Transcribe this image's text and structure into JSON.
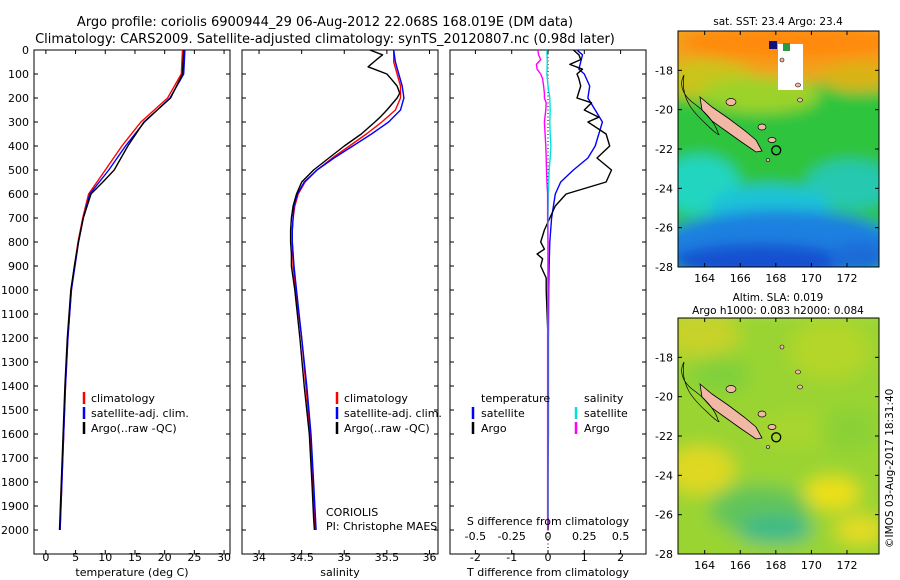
{
  "header": {
    "line1": "Argo profile: coriolis 6900944_29 06-Aug-2012 22.068S 168.019E (DM data)",
    "line2": "Climatology: CARS2009. Satellite-adjusted climatology: synTS_20120807.nc (0.98d later)"
  },
  "colors": {
    "climatology": "#ff0000",
    "satellite": "#0000ff",
    "argo": "#000000",
    "argo_salinity_diff": "#ff00ff",
    "satellite_salinity_diff": "#00e0e0"
  },
  "credits": {
    "agency": "CORIOLIS",
    "pi": "PI: Christophe MAES",
    "watermark": "©IMOS 03-Aug-2017 18:31:40"
  },
  "legend": {
    "climatology": "climatology",
    "satellite_adj": "satellite-adj. clim.",
    "argo_qc": "Argo(..raw -QC)",
    "temperature": "temperature",
    "salinity": "salinity",
    "satellite": "satellite",
    "argo": "Argo"
  },
  "chart_data": [
    {
      "type": "line",
      "id": "temperature-profile",
      "xlabel": "temperature (deg C)",
      "xlim": [
        -2,
        31
      ],
      "xticks": [
        0,
        5,
        10,
        15,
        20,
        25,
        30
      ],
      "ylim": [
        2100,
        0
      ],
      "yticks": [
        0,
        100,
        200,
        300,
        400,
        500,
        600,
        700,
        800,
        900,
        1000,
        1100,
        1200,
        1300,
        1400,
        1500,
        1600,
        1700,
        1800,
        1900,
        2000
      ],
      "series": [
        {
          "name": "climatology",
          "color": "#ff0000",
          "depth": [
            0,
            100,
            200,
            300,
            400,
            500,
            550,
            600,
            700,
            800,
            900,
            1000,
            1200,
            1400,
            1600,
            1800,
            2000
          ],
          "values": [
            23.0,
            22.8,
            20.5,
            16.0,
            12.8,
            10.0,
            8.6,
            7.2,
            6.2,
            5.4,
            4.8,
            4.3,
            3.7,
            3.3,
            3.0,
            2.7,
            2.4
          ]
        },
        {
          "name": "satellite-adj. clim.",
          "color": "#0000ff",
          "depth": [
            0,
            100,
            200,
            300,
            400,
            500,
            550,
            600,
            700,
            800,
            900,
            1000,
            1200,
            1400,
            1600,
            1800,
            2000
          ],
          "values": [
            23.4,
            23.2,
            20.9,
            16.6,
            13.4,
            10.6,
            9.0,
            7.4,
            6.3,
            5.5,
            4.9,
            4.3,
            3.7,
            3.3,
            3.0,
            2.7,
            2.4
          ]
        },
        {
          "name": "Argo(..raw -QC)",
          "color": "#000000",
          "depth": [
            0,
            100,
            200,
            300,
            400,
            500,
            550,
            600,
            700,
            800,
            900,
            1000,
            1200,
            1400,
            1600,
            1800,
            2000
          ],
          "values": [
            23.2,
            23.0,
            21.0,
            16.5,
            13.8,
            11.5,
            9.6,
            7.6,
            6.3,
            5.5,
            4.8,
            4.2,
            3.6,
            3.2,
            2.9,
            2.6,
            2.3
          ]
        }
      ]
    },
    {
      "type": "line",
      "id": "salinity-profile",
      "xlabel": "salinity",
      "xlim": [
        33.8,
        36.1
      ],
      "xticks": [
        34,
        34.5,
        35,
        35.5,
        36
      ],
      "ylim": [
        2100,
        0
      ],
      "series": [
        {
          "name": "climatology",
          "color": "#ff0000",
          "depth": [
            0,
            50,
            100,
            150,
            200,
            250,
            300,
            350,
            400,
            450,
            500,
            550,
            600,
            650,
            700,
            750,
            800,
            900,
            1000,
            1200,
            1400,
            1600,
            1800,
            2000
          ],
          "values": [
            35.58,
            35.58,
            35.62,
            35.66,
            35.66,
            35.6,
            35.44,
            35.26,
            35.06,
            34.86,
            34.68,
            34.54,
            34.46,
            34.42,
            34.4,
            34.39,
            34.39,
            34.4,
            34.43,
            34.5,
            34.55,
            34.6,
            34.63,
            34.66
          ]
        },
        {
          "name": "satellite-adj. clim.",
          "color": "#0000ff",
          "depth": [
            0,
            50,
            100,
            150,
            200,
            250,
            300,
            350,
            400,
            450,
            500,
            550,
            600,
            650,
            700,
            750,
            800,
            900,
            1000,
            1200,
            1400,
            1600,
            1800,
            2000
          ],
          "values": [
            35.58,
            35.6,
            35.64,
            35.68,
            35.7,
            35.66,
            35.52,
            35.32,
            35.1,
            34.88,
            34.68,
            34.53,
            34.45,
            34.41,
            34.4,
            34.39,
            34.39,
            34.41,
            34.44,
            34.5,
            34.56,
            34.61,
            34.64,
            34.67
          ]
        },
        {
          "name": "Argo(..raw -QC)",
          "color": "#000000",
          "depth": [
            0,
            20,
            40,
            70,
            100,
            120,
            150,
            180,
            200,
            250,
            280,
            300,
            350,
            400,
            450,
            500,
            550,
            600,
            650,
            700,
            750,
            800,
            850,
            900,
            1000,
            1200,
            1400,
            1600,
            1800,
            1950,
            2000
          ],
          "values": [
            35.3,
            35.45,
            35.38,
            35.28,
            35.5,
            35.55,
            35.62,
            35.65,
            35.62,
            35.5,
            35.42,
            35.36,
            35.2,
            35.0,
            34.82,
            34.64,
            34.5,
            34.44,
            34.4,
            34.38,
            34.37,
            34.37,
            34.38,
            34.38,
            34.42,
            34.48,
            34.53,
            34.59,
            34.62,
            34.64,
            34.65
          ]
        }
      ]
    },
    {
      "type": "line",
      "id": "difference-profile",
      "xlabel": "T difference from climatology",
      "xlabel2": "S difference from climatology",
      "xlim": [
        -2.7,
        2.7
      ],
      "xticks": [
        -2,
        -1,
        0,
        1,
        2
      ],
      "xticks_salinity": [
        -0.5,
        -0.25,
        0,
        0.25,
        0.5
      ],
      "xticks_salinity_labels": [
        "-0.5",
        "-0.25",
        "0",
        "0.25",
        "0.5"
      ],
      "ylim": [
        2100,
        0
      ],
      "series": [
        {
          "name": "temperature satellite",
          "color": "#0000ff",
          "depth": [
            0,
            20,
            50,
            80,
            100,
            150,
            200,
            250,
            300,
            350,
            400,
            450,
            500,
            550,
            600,
            700,
            800,
            900,
            1000,
            1200,
            1400,
            1600,
            1800,
            2000
          ],
          "values": [
            0.8,
            0.95,
            0.9,
            0.85,
            1.0,
            1.15,
            1.1,
            1.3,
            1.5,
            1.4,
            1.3,
            1.1,
            0.7,
            0.35,
            0.2,
            0.1,
            0.05,
            0.03,
            0.02,
            0.01,
            0.01,
            0.01,
            0.0,
            0.0
          ]
        },
        {
          "name": "temperature Argo",
          "color": "#000000",
          "depth": [
            0,
            20,
            40,
            60,
            80,
            100,
            120,
            150,
            200,
            220,
            250,
            280,
            300,
            350,
            400,
            450,
            500,
            550,
            600,
            650,
            700,
            750,
            800,
            830,
            850,
            870,
            900,
            950,
            1000,
            1200,
            1400,
            1600,
            1800,
            2000
          ],
          "values": [
            0.7,
            0.85,
            0.9,
            0.6,
            0.95,
            0.8,
            0.85,
            0.9,
            0.8,
            1.2,
            1.0,
            1.4,
            1.1,
            1.6,
            1.7,
            1.35,
            1.75,
            1.6,
            0.5,
            0.2,
            0.05,
            -0.1,
            -0.2,
            -0.1,
            -0.3,
            -0.15,
            -0.2,
            -0.05,
            -0.05,
            0.0,
            0.0,
            0.0,
            0.0,
            0.0
          ]
        },
        {
          "name": "salinity satellite",
          "color": "#00e0e0",
          "depth": [
            0,
            50,
            100,
            150,
            200,
            250,
            300,
            350,
            400,
            450,
            500,
            600,
            700,
            800,
            1000,
            1200,
            1400,
            1600,
            1800,
            1950
          ],
          "values": [
            -0.03,
            -0.02,
            -0.03,
            0.0,
            0.05,
            0.06,
            0.05,
            0.06,
            0.08,
            0.06,
            0.03,
            0.01,
            0.0,
            0.0,
            0.0,
            0.0,
            0.0,
            0.0,
            0.0,
            0.0
          ]
        },
        {
          "name": "salinity Argo",
          "color": "#ff00ff",
          "depth": [
            0,
            20,
            40,
            60,
            80,
            100,
            120,
            150,
            180,
            200,
            220,
            250,
            300,
            350,
            400,
            450,
            500,
            550,
            600,
            650,
            700,
            800,
            900,
            1000,
            1200,
            1400,
            1600,
            1800,
            2000
          ],
          "values": [
            -0.28,
            -0.26,
            -0.2,
            -0.32,
            -0.3,
            -0.2,
            -0.15,
            -0.12,
            -0.1,
            -0.1,
            -0.05,
            -0.06,
            -0.1,
            -0.08,
            -0.06,
            -0.05,
            -0.04,
            -0.03,
            -0.01,
            -0.01,
            -0.01,
            0.0,
            0.0,
            0.0,
            -0.01,
            -0.01,
            -0.01,
            -0.01,
            -0.01
          ]
        }
      ]
    },
    {
      "type": "heatmap",
      "id": "sst-map",
      "title": "sat. SST: 23.4  Argo: 23.4",
      "xlim": [
        162.5,
        173.8
      ],
      "ylim": [
        -28,
        -16
      ],
      "xticks": [
        164,
        166,
        168,
        170,
        172
      ],
      "yticks": [
        -18,
        -20,
        -22,
        -24,
        -26,
        -28
      ],
      "marker": {
        "lon": 168.019,
        "lat": -22.068
      }
    },
    {
      "type": "heatmap",
      "id": "sla-map",
      "title": "Altim. SLA: 0.019",
      "subtitle": "Argo h1000: 0.083 h2000: 0.084",
      "xlim": [
        162.5,
        173.8
      ],
      "ylim": [
        -28,
        -16
      ],
      "xticks": [
        164,
        166,
        168,
        170,
        172
      ],
      "yticks": [
        -18,
        -20,
        -22,
        -24,
        -26,
        -28
      ],
      "marker": {
        "lon": 168.019,
        "lat": -22.068
      }
    }
  ]
}
